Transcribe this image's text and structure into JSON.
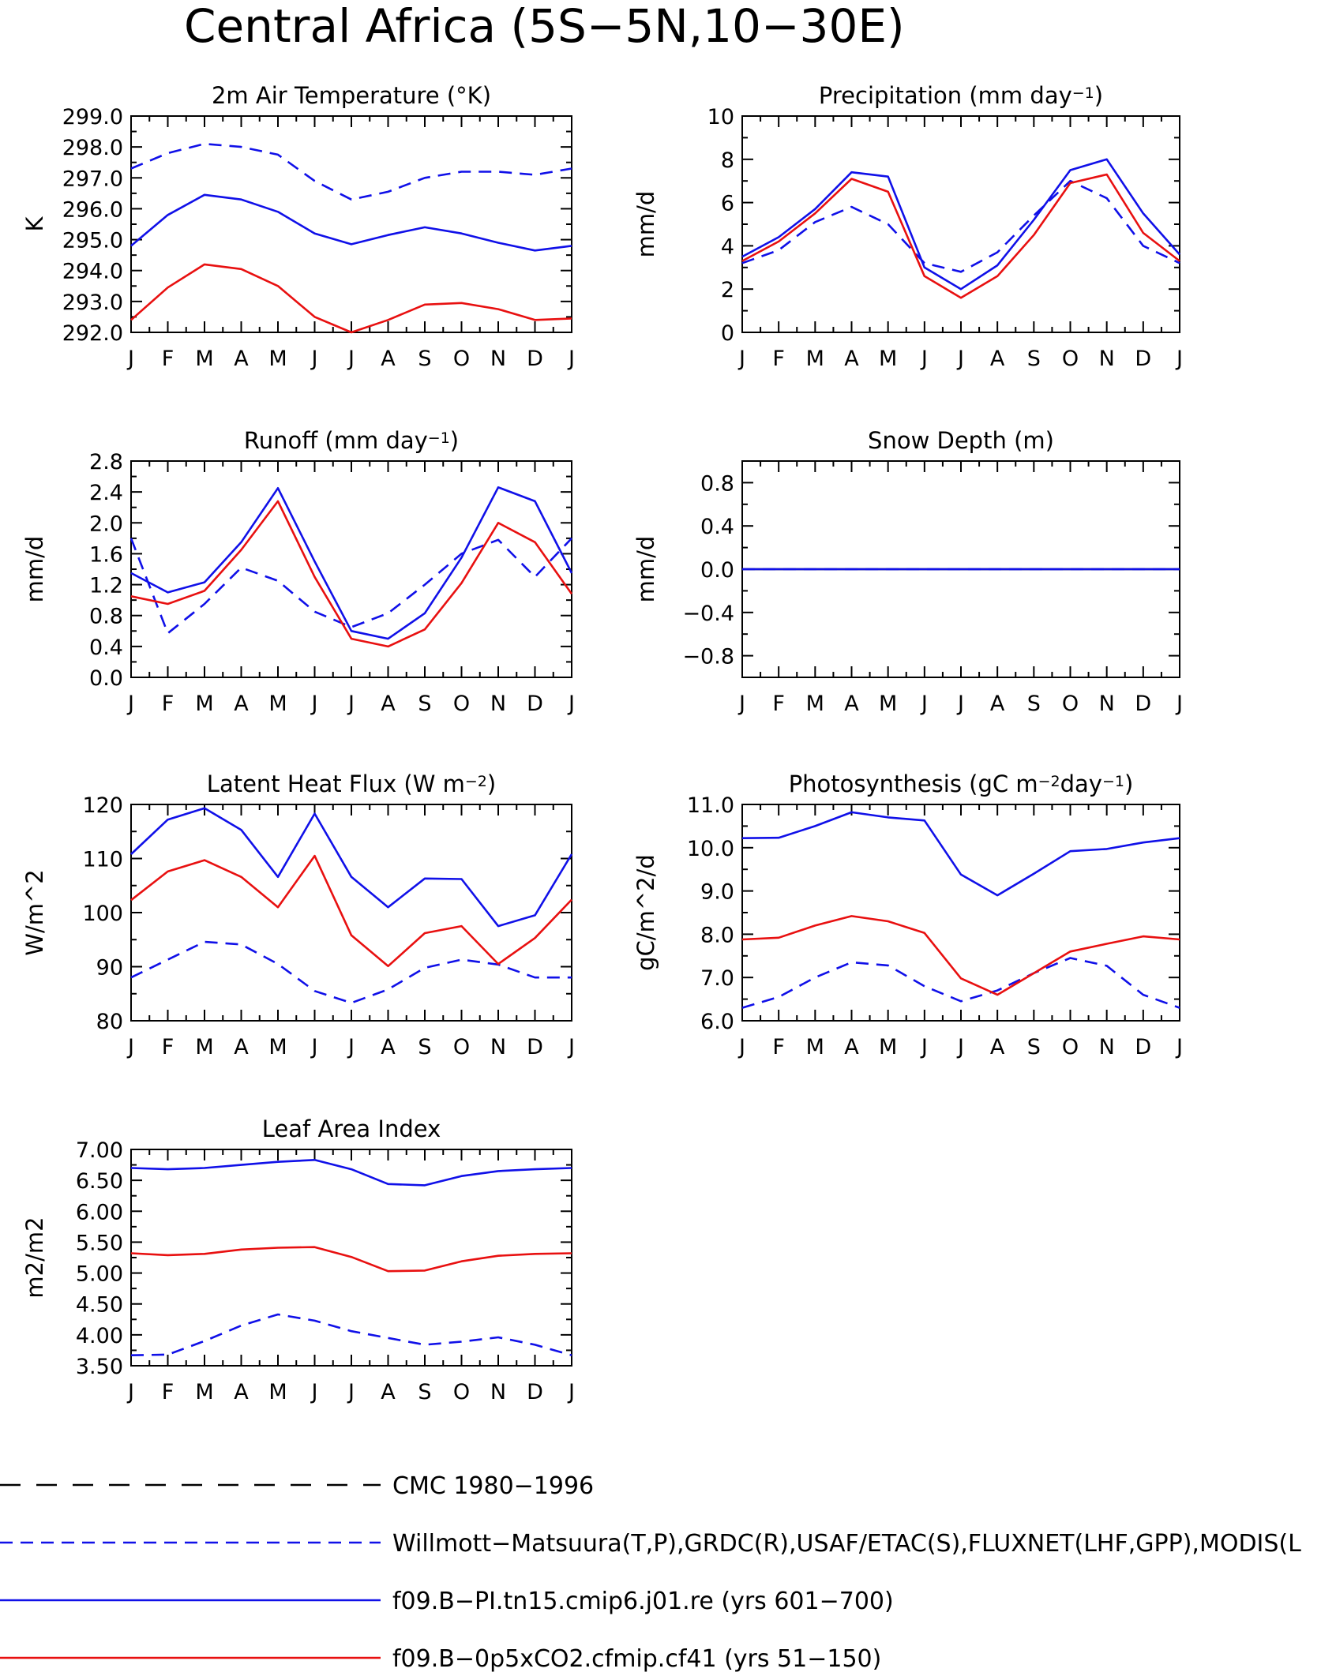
{
  "page_title": "Central Africa (5S−5N,10−30E)",
  "colors": {
    "blue": "#1010e8",
    "red": "#e81010",
    "black": "#000000"
  },
  "chart_data": [
    {
      "id": "temp",
      "type": "line",
      "title": "2m Air Temperature (°K)",
      "ylabel": "K",
      "categories": [
        "J",
        "F",
        "M",
        "A",
        "M",
        "J",
        "J",
        "A",
        "S",
        "O",
        "N",
        "D",
        "J"
      ],
      "ylim": [
        292.0,
        299.0
      ],
      "yticks": [
        "292.0",
        "293.0",
        "294.0",
        "295.0",
        "296.0",
        "297.0",
        "298.0",
        "299.0"
      ],
      "series": [
        {
          "style": "blue-dashed",
          "values": [
            297.3,
            297.8,
            298.1,
            298.0,
            297.75,
            296.9,
            296.3,
            296.55,
            297.0,
            297.2,
            297.2,
            297.1,
            297.3
          ]
        },
        {
          "style": "blue-solid",
          "values": [
            294.8,
            295.8,
            296.45,
            296.3,
            295.9,
            295.2,
            294.85,
            295.15,
            295.4,
            295.2,
            294.9,
            294.65,
            294.8
          ]
        },
        {
          "style": "red-solid",
          "values": [
            292.4,
            293.45,
            294.2,
            294.05,
            293.5,
            292.5,
            292.0,
            292.4,
            292.9,
            292.95,
            292.75,
            292.4,
            292.45
          ]
        }
      ]
    },
    {
      "id": "precip",
      "type": "line",
      "title_main": "Precipitation (mm day",
      "title_sup": "−1",
      "title_end": ")",
      "ylabel": "mm/d",
      "categories": [
        "J",
        "F",
        "M",
        "A",
        "M",
        "J",
        "J",
        "A",
        "S",
        "O",
        "N",
        "D",
        "J"
      ],
      "ylim": [
        0,
        10
      ],
      "yticks": [
        "0",
        "2",
        "4",
        "6",
        "8",
        "10"
      ],
      "series": [
        {
          "style": "blue-dashed",
          "values": [
            3.2,
            3.8,
            5.1,
            5.8,
            5.0,
            3.2,
            2.8,
            3.7,
            5.4,
            7.0,
            6.2,
            4.0,
            3.2
          ]
        },
        {
          "style": "blue-solid",
          "values": [
            3.5,
            4.4,
            5.7,
            7.4,
            7.2,
            3.0,
            2.0,
            3.1,
            5.2,
            7.5,
            8.0,
            5.5,
            3.6
          ]
        },
        {
          "style": "red-solid",
          "values": [
            3.3,
            4.2,
            5.5,
            7.1,
            6.5,
            2.6,
            1.6,
            2.6,
            4.5,
            6.9,
            7.3,
            4.6,
            3.3
          ]
        }
      ]
    },
    {
      "id": "runoff",
      "type": "line",
      "title_main": "Runoff (mm day",
      "title_sup": "−1",
      "title_end": ")",
      "ylabel": "mm/d",
      "categories": [
        "J",
        "F",
        "M",
        "A",
        "M",
        "J",
        "J",
        "A",
        "S",
        "O",
        "N",
        "D",
        "J"
      ],
      "ylim": [
        0.0,
        2.8
      ],
      "yticks": [
        "0.0",
        "0.4",
        "0.8",
        "1.2",
        "1.6",
        "2.0",
        "2.4",
        "2.8"
      ],
      "series": [
        {
          "style": "blue-dashed",
          "values": [
            1.8,
            0.57,
            0.95,
            1.42,
            1.25,
            0.85,
            0.65,
            0.83,
            1.2,
            1.6,
            1.78,
            1.3,
            1.8
          ]
        },
        {
          "style": "blue-solid",
          "values": [
            1.35,
            1.1,
            1.23,
            1.75,
            2.45,
            1.5,
            0.6,
            0.5,
            0.83,
            1.55,
            2.46,
            2.28,
            1.35
          ]
        },
        {
          "style": "red-solid",
          "values": [
            1.05,
            0.95,
            1.12,
            1.65,
            2.28,
            1.3,
            0.5,
            0.4,
            0.62,
            1.22,
            2.0,
            1.75,
            1.08
          ]
        }
      ]
    },
    {
      "id": "snow",
      "type": "line",
      "title": "Snow Depth (m)",
      "ylabel": "mm/d",
      "categories": [
        "J",
        "F",
        "M",
        "A",
        "M",
        "J",
        "J",
        "A",
        "S",
        "O",
        "N",
        "D",
        "J"
      ],
      "ylim": [
        -1.0,
        1.0
      ],
      "yticks": [
        "−0.8",
        "−0.4",
        "0.0",
        "0.4",
        "0.8"
      ],
      "ytick_values": [
        -0.8,
        -0.4,
        0.0,
        0.4,
        0.8
      ],
      "series": [
        {
          "style": "black-solid",
          "values": [
            0,
            0,
            0,
            0,
            0,
            0,
            0,
            0,
            0,
            0,
            0,
            0,
            0
          ]
        },
        {
          "style": "blue-solid",
          "values": [
            0,
            0,
            0,
            0,
            0,
            0,
            0,
            0,
            0,
            0,
            0,
            0,
            0
          ]
        },
        {
          "style": "blue-dashed",
          "values": [
            0,
            0,
            0,
            0,
            0,
            0,
            0,
            0,
            0,
            0,
            0,
            0,
            0
          ]
        }
      ]
    },
    {
      "id": "lhf",
      "type": "line",
      "title_main": "Latent Heat Flux (W m",
      "title_sup": "−2",
      "title_end": ")",
      "ylabel": "W/m^2",
      "categories": [
        "J",
        "F",
        "M",
        "A",
        "M",
        "J",
        "J",
        "A",
        "S",
        "O",
        "N",
        "D",
        "J"
      ],
      "ylim": [
        80,
        120
      ],
      "yticks": [
        "80",
        "90",
        "100",
        "110",
        "120"
      ],
      "series": [
        {
          "style": "blue-dashed",
          "values": [
            88,
            91.3,
            94.6,
            94.1,
            90.5,
            85.5,
            83.3,
            85.8,
            89.8,
            91.3,
            90.4,
            88,
            88
          ]
        },
        {
          "style": "blue-solid",
          "values": [
            110.8,
            117.2,
            119.3,
            115.3,
            106.6,
            118.3,
            106.6,
            101,
            106.3,
            106.2,
            97.5,
            99.5,
            110.8
          ]
        },
        {
          "style": "red-solid",
          "values": [
            102.3,
            107.6,
            109.7,
            106.6,
            101,
            110.5,
            95.8,
            90.1,
            96.2,
            97.5,
            90.5,
            95.3,
            102.4
          ]
        }
      ]
    },
    {
      "id": "photo",
      "type": "line",
      "title_main": "Photosynthesis (gC m",
      "title_sup": "−2",
      "title_mid": "day",
      "title_sup2": "−1",
      "title_end": ")",
      "ylabel": "gC/m^2/d",
      "categories": [
        "J",
        "F",
        "M",
        "A",
        "M",
        "J",
        "J",
        "A",
        "S",
        "O",
        "N",
        "D",
        "J"
      ],
      "ylim": [
        6.0,
        11.0
      ],
      "yticks": [
        "6.0",
        "7.0",
        "8.0",
        "9.0",
        "10.0",
        "11.0"
      ],
      "series": [
        {
          "style": "blue-dashed",
          "values": [
            6.3,
            6.55,
            7.0,
            7.35,
            7.28,
            6.8,
            6.45,
            6.7,
            7.1,
            7.45,
            7.27,
            6.6,
            6.3
          ]
        },
        {
          "style": "blue-solid",
          "values": [
            10.22,
            10.23,
            10.5,
            10.82,
            10.7,
            10.63,
            9.38,
            8.9,
            9.4,
            9.92,
            9.97,
            10.12,
            10.22
          ]
        },
        {
          "style": "red-solid",
          "values": [
            7.88,
            7.92,
            8.2,
            8.42,
            8.3,
            8.03,
            6.98,
            6.6,
            7.1,
            7.6,
            7.78,
            7.95,
            7.88
          ]
        }
      ]
    },
    {
      "id": "lai",
      "type": "line",
      "title": "Leaf Area Index",
      "ylabel": "m2/m2",
      "categories": [
        "J",
        "F",
        "M",
        "A",
        "M",
        "J",
        "J",
        "A",
        "S",
        "O",
        "N",
        "D",
        "J"
      ],
      "ylim": [
        3.5,
        7.0
      ],
      "yticks": [
        "3.50",
        "4.00",
        "4.50",
        "5.00",
        "5.50",
        "6.00",
        "6.50",
        "7.00"
      ],
      "series": [
        {
          "style": "blue-dashed",
          "values": [
            3.67,
            3.68,
            3.9,
            4.15,
            4.33,
            4.23,
            4.06,
            3.95,
            3.84,
            3.89,
            3.96,
            3.84,
            3.67
          ]
        },
        {
          "style": "blue-solid",
          "values": [
            6.7,
            6.68,
            6.7,
            6.75,
            6.8,
            6.83,
            6.68,
            6.44,
            6.42,
            6.57,
            6.65,
            6.68,
            6.7
          ]
        },
        {
          "style": "red-solid",
          "values": [
            5.32,
            5.29,
            5.31,
            5.38,
            5.41,
            5.42,
            5.26,
            5.03,
            5.04,
            5.19,
            5.28,
            5.31,
            5.32
          ]
        }
      ]
    }
  ],
  "legend": [
    {
      "style": "black-dashed",
      "label": "CMC 1980−1996"
    },
    {
      "style": "blue-dashed",
      "label": "Willmott−Matsuura(T,P),GRDC(R),USAF/ETAC(S),FLUXNET(LHF,GPP),MODIS(L"
    },
    {
      "style": "blue-solid",
      "label": "f09.B−PI.tn15.cmip6.j01.re (yrs 601−700)"
    },
    {
      "style": "red-solid",
      "label": "f09.B−0p5xCO2.cfmip.cf41 (yrs 51−150)"
    }
  ]
}
